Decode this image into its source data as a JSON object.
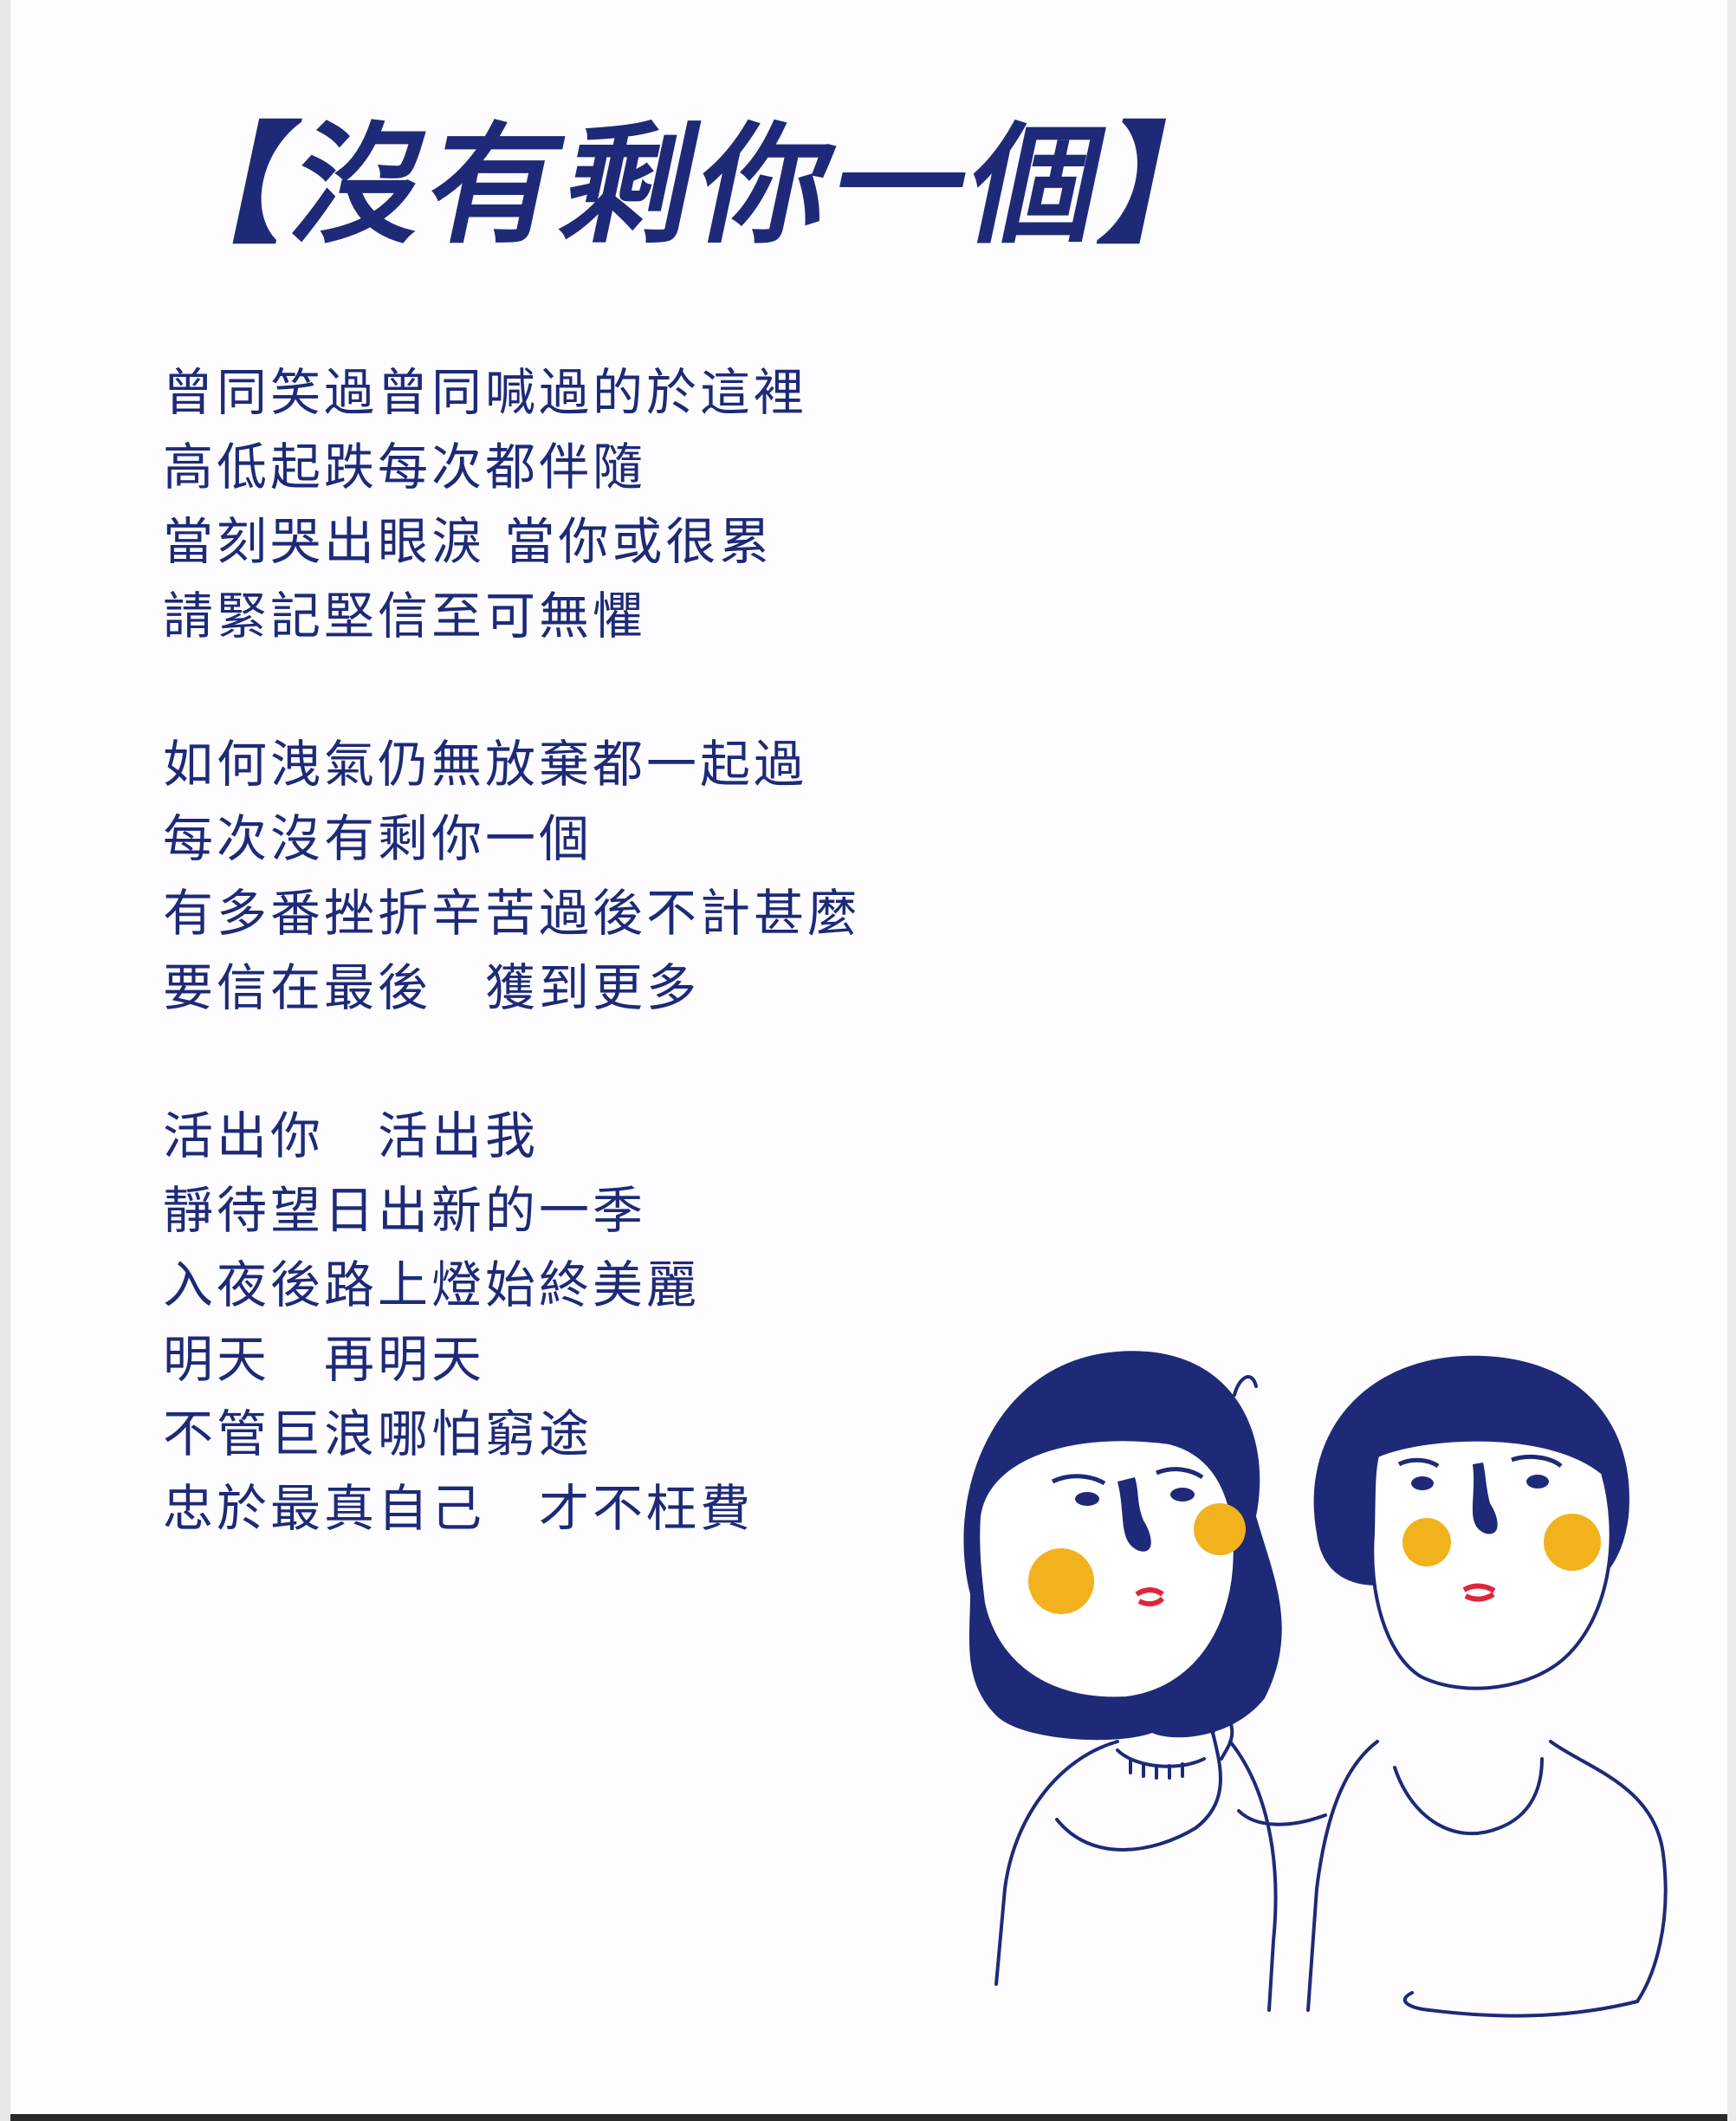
{
  "title": "【沒有剩你一個】",
  "stanzas": [
    [
      "曾同笑過曾同喊過的於這裡",
      "高低起跌每次都伴隨",
      "當刻哭出眼淚 當你或很累",
      "請緊記堅信至可無懼"
    ],
    [
      "如何洩氣仍無放棄都一起過",
      "每次沒有剩你一個",
      "有多番挫折辛苦過後不計甚麼",
      "要信在最後　獲到更多"
    ],
    [
      "活出你　活出我",
      "靜待望日出新的一季",
      "入夜後路上燈始終美麗",
      "明天　再明天",
      "不管巨浪哪怕窮途",
      "忠於最真自己　才不枉費"
    ]
  ],
  "colors": {
    "ink": "#1e2a78",
    "cheek": "#f2b21d",
    "lips": "#e0243a",
    "paper": "#fdfdff"
  },
  "illustration": {
    "icon": "two-people-illustration"
  }
}
